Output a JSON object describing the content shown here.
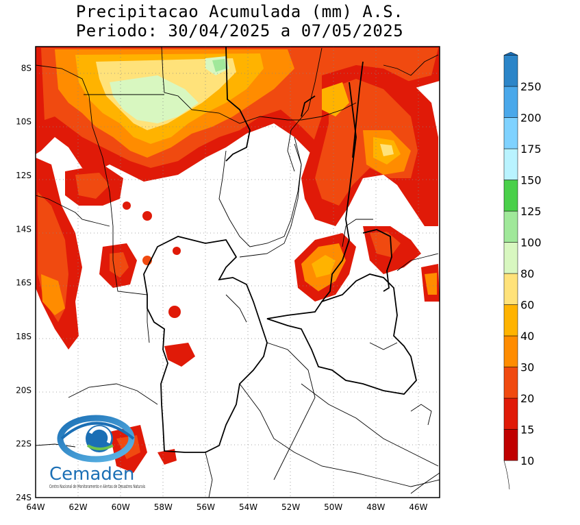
{
  "title": {
    "line1": "Precipitacao Acumulada (mm) A.S.",
    "line2": "Periodo: 30/04/2025 a 07/05/2025"
  },
  "map": {
    "lon_range": [
      -64,
      -45
    ],
    "lat_range": [
      -24,
      -7.2
    ],
    "x_ticks": [
      "64W",
      "62W",
      "60W",
      "58W",
      "56W",
      "54W",
      "52W",
      "50W",
      "48W",
      "46W"
    ],
    "y_ticks": [
      "8S",
      "10S",
      "12S",
      "14S",
      "16S",
      "18S",
      "20S",
      "22S",
      "24S"
    ],
    "grid": "dotted"
  },
  "colorbar": {
    "levels": [
      "10",
      "15",
      "20",
      "30",
      "40",
      "60",
      "80",
      "100",
      "125",
      "150",
      "175",
      "200",
      "250"
    ],
    "colors": [
      "#c00000",
      "#e01a08",
      "#f04a10",
      "#ff8c00",
      "#ffb300",
      "#ffe27a",
      "#d8f7c0",
      "#a0e89a",
      "#4ad04a",
      "#b9f3ff",
      "#7fd2ff",
      "#4aa8ea",
      "#2c85c8",
      "#1a6fb8"
    ]
  },
  "logo": {
    "name": "Cemaden",
    "subtitle": "Centro Nacional de Monitoramento e Alertas de Desastres Naturais"
  }
}
